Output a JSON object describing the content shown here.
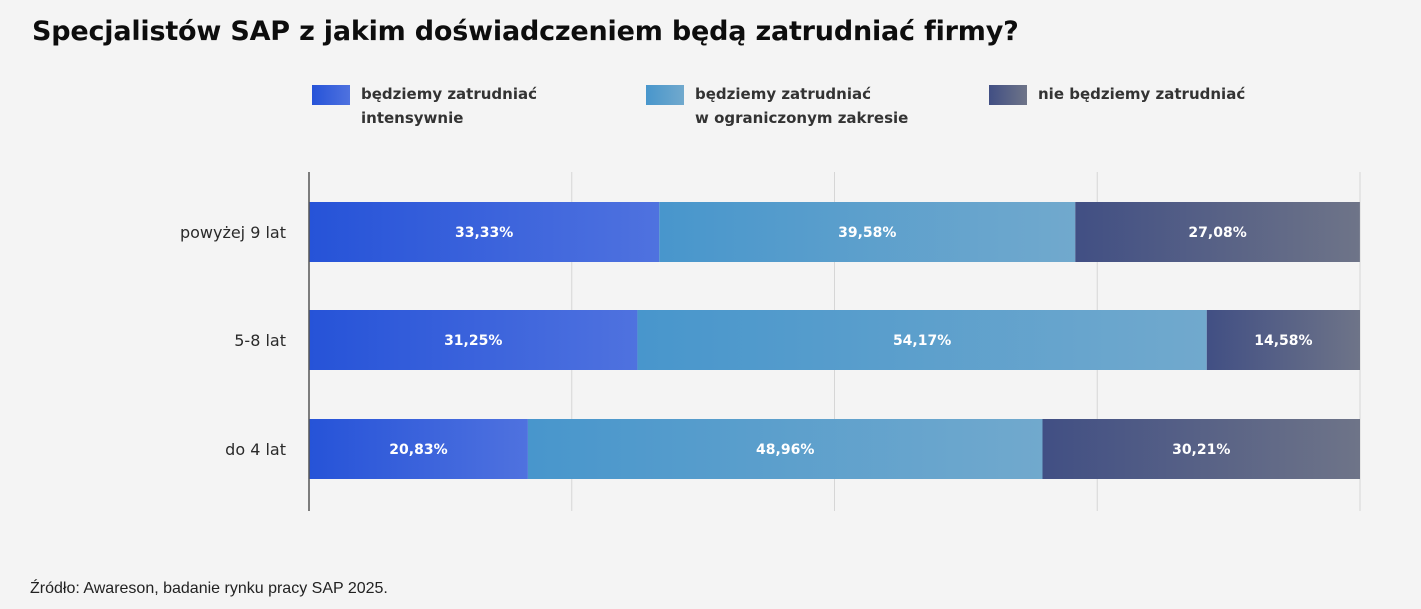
{
  "title": "Specjalistów SAP z jakim doświadczeniem będą zatrudniać firmy?",
  "source": "Źródło: Awareson, badanie rynku pracy SAP 2025.",
  "chart_data": {
    "type": "bar",
    "orientation": "horizontal",
    "stacked": true,
    "categories": [
      "powyżej 9 lat",
      "5-8 lat",
      "do 4 lat"
    ],
    "series": [
      {
        "name": "będziemy zatrudniać\nintensywnie",
        "values": [
          33.33,
          31.25,
          20.83
        ],
        "labels": [
          "33,33%",
          "31,25%",
          "20,83%"
        ],
        "color_start": "#2653d8",
        "color_end": "#4f72df"
      },
      {
        "name": "będziemy zatrudniać\nw ograniczonym zakresie",
        "values": [
          39.58,
          54.17,
          48.96
        ],
        "labels": [
          "39,58%",
          "54,17%",
          "48,96%"
        ],
        "color_start": "#4896cc",
        "color_end": "#71a9cd"
      },
      {
        "name": "nie będziemy zatrudniać",
        "values": [
          27.08,
          14.58,
          30.21
        ],
        "labels": [
          "27,08%",
          "14,58%",
          "30,21%"
        ],
        "color_start": "#414f84",
        "color_end": "#6e7488"
      }
    ],
    "xlim": [
      0,
      100
    ],
    "grid": true,
    "legend_position": "top"
  }
}
